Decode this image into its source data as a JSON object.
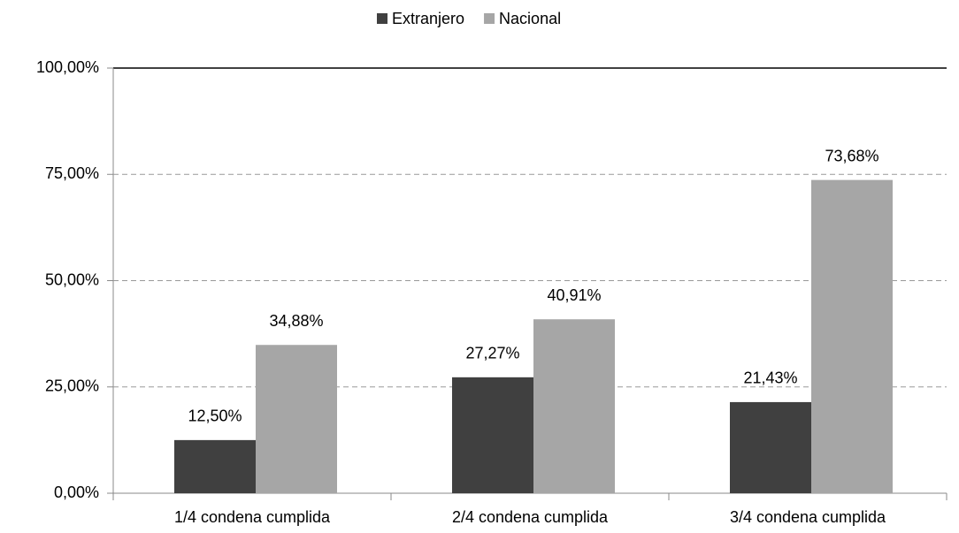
{
  "chart_data": {
    "type": "bar",
    "categories": [
      "1/4 condena cumplida",
      "2/4 condena cumplida",
      "3/4 condena cumplida"
    ],
    "series": [
      {
        "name": "Extranjero",
        "color": "#404040",
        "values": [
          12.5,
          27.27,
          21.43
        ],
        "value_labels": [
          "12,50%",
          "27,27%",
          "21,43%"
        ]
      },
      {
        "name": "Nacional",
        "color": "#a6a6a6",
        "values": [
          34.88,
          40.91,
          73.68
        ],
        "value_labels": [
          "34,88%",
          "40,91%",
          "73,68%"
        ]
      }
    ],
    "ylim": [
      0,
      100
    ],
    "yticks": [
      {
        "value": 0,
        "label": "0,00%"
      },
      {
        "value": 25,
        "label": "25,00%"
      },
      {
        "value": 50,
        "label": "50,00%"
      },
      {
        "value": 75,
        "label": "75,00%"
      },
      {
        "value": 100,
        "label": "100,00%"
      }
    ],
    "grid": true,
    "legend": "top"
  }
}
